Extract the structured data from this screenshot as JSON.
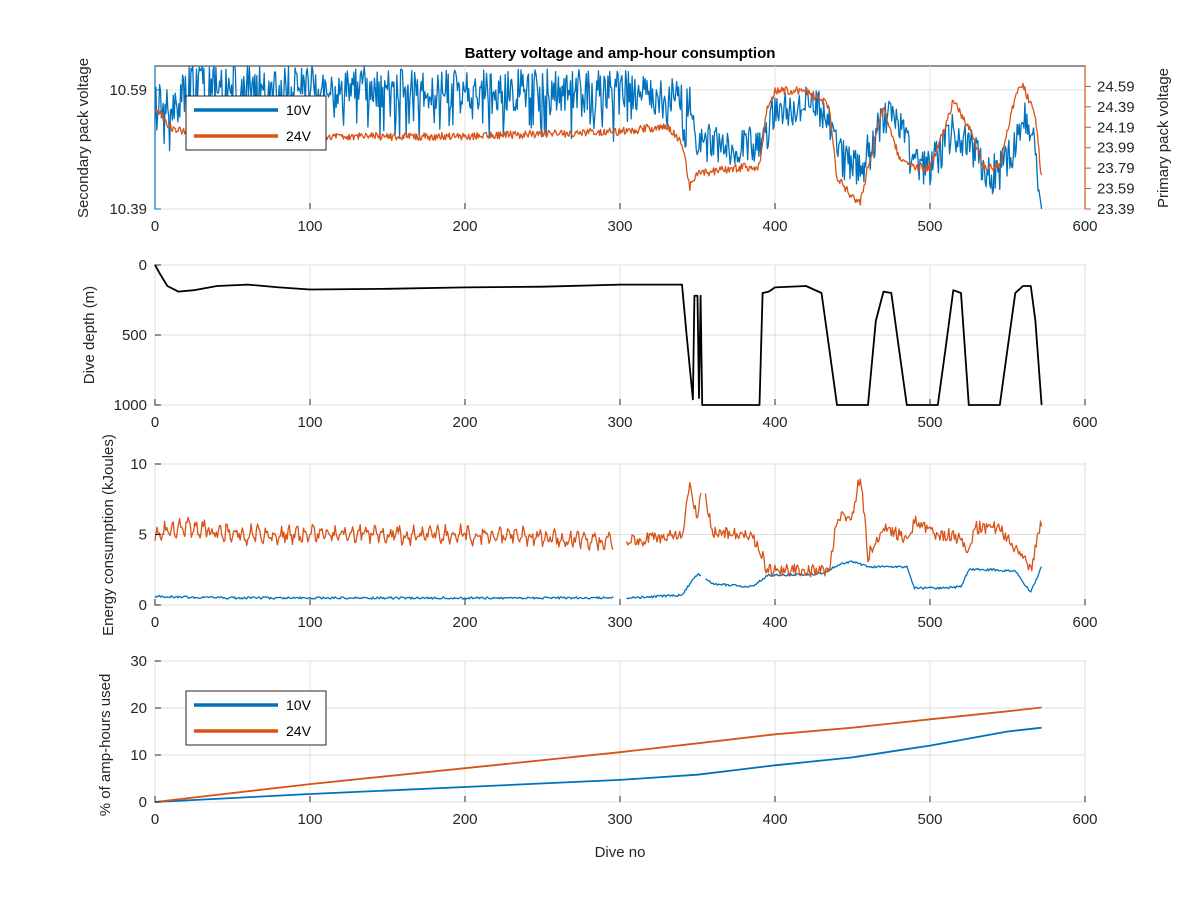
{
  "figure": {
    "title": "Battery voltage and amp-hour consumption"
  },
  "colors": {
    "series_10v": "#0072BD",
    "series_24v": "#D95319",
    "depth": "#000000",
    "axis": "#262626",
    "grid": "#dfdfdf"
  },
  "chart_data": [
    {
      "id": "voltage",
      "type": "line",
      "title": "Battery voltage and amp-hour consumption",
      "xlabel": "",
      "ylabel": "Secondary pack voltage",
      "ylabel_right": "Primary pack voltage",
      "xlim": [
        0,
        600
      ],
      "ylim": [
        10.39,
        10.63
      ],
      "ylim_right": [
        23.39,
        24.79
      ],
      "xticks": [
        "0",
        "100",
        "200",
        "300",
        "400",
        "500",
        "600"
      ],
      "yticks": [
        "10.39",
        "10.59"
      ],
      "yticks_right": [
        "23.39",
        "23.59",
        "23.79",
        "23.99",
        "24.19",
        "24.39",
        "24.59"
      ],
      "grid": true,
      "legend": {
        "entries": [
          "10V",
          "24V"
        ],
        "position": "top-left"
      },
      "series": [
        {
          "name": "10V",
          "axis": "left",
          "x": [
            0,
            10,
            25,
            50,
            100,
            150,
            200,
            250,
            300,
            330,
            345,
            348,
            355,
            380,
            395,
            400,
            420,
            435,
            440,
            455,
            462,
            470,
            480,
            490,
            500,
            515,
            525,
            535,
            545,
            555,
            560,
            568,
            572
          ],
          "y": [
            10.58,
            10.57,
            10.6,
            10.6,
            10.6,
            10.59,
            10.59,
            10.59,
            10.59,
            10.585,
            10.58,
            10.52,
            10.5,
            10.49,
            10.52,
            10.56,
            10.57,
            10.55,
            10.48,
            10.46,
            10.49,
            10.54,
            10.53,
            10.46,
            10.46,
            10.52,
            10.5,
            10.45,
            10.45,
            10.5,
            10.55,
            10.5,
            10.39
          ]
        },
        {
          "name": "24V",
          "axis": "right",
          "x": [
            0,
            10,
            30,
            100,
            200,
            300,
            330,
            340,
            345,
            350,
            355,
            380,
            390,
            395,
            400,
            420,
            435,
            440,
            450,
            455,
            460,
            470,
            480,
            490,
            500,
            510,
            515,
            525,
            535,
            545,
            555,
            560,
            568,
            572
          ],
          "y": [
            24.39,
            24.19,
            24.1,
            24.1,
            24.1,
            24.15,
            24.2,
            24.05,
            23.6,
            23.75,
            23.75,
            23.8,
            23.8,
            24.4,
            24.55,
            24.55,
            24.4,
            23.7,
            23.5,
            23.45,
            23.8,
            24.4,
            23.9,
            23.8,
            23.8,
            24.2,
            24.45,
            24.2,
            23.8,
            23.8,
            24.5,
            24.6,
            24.3,
            23.7
          ]
        }
      ]
    },
    {
      "id": "depth",
      "type": "line",
      "xlabel": "",
      "ylabel": "Dive depth (m)",
      "xlim": [
        0,
        600
      ],
      "ylim": [
        0,
        1000
      ],
      "y_reversed": true,
      "xticks": [
        "0",
        "100",
        "200",
        "300",
        "400",
        "500",
        "600"
      ],
      "yticks": [
        "0",
        "500",
        "1000"
      ],
      "grid": true,
      "series": [
        {
          "name": "",
          "x": [
            0,
            3,
            8,
            15,
            25,
            40,
            60,
            80,
            100,
            150,
            200,
            250,
            300,
            330,
            340,
            343,
            347,
            348,
            350,
            351,
            352,
            353,
            380,
            390,
            392,
            396,
            400,
            420,
            430,
            435,
            440,
            460,
            465,
            470,
            475,
            480,
            485,
            495,
            505,
            510,
            515,
            520,
            525,
            545,
            550,
            555,
            560,
            565,
            568,
            572
          ],
          "y": [
            0,
            60,
            150,
            190,
            180,
            150,
            140,
            160,
            175,
            170,
            160,
            155,
            140,
            140,
            140,
            500,
            960,
            220,
            220,
            950,
            220,
            1000,
            1000,
            1000,
            200,
            190,
            160,
            150,
            200,
            600,
            1000,
            1000,
            400,
            190,
            200,
            600,
            1000,
            1000,
            1000,
            600,
            180,
            200,
            1000,
            1000,
            600,
            200,
            150,
            150,
            400,
            1000
          ]
        }
      ]
    },
    {
      "id": "energy",
      "type": "line",
      "xlabel": "",
      "ylabel": "Energy consumption (kJoules)",
      "xlim": [
        0,
        600
      ],
      "ylim": [
        0,
        10
      ],
      "xticks": [
        "0",
        "100",
        "200",
        "300",
        "400",
        "500",
        "600"
      ],
      "yticks": [
        "0",
        "5",
        "10"
      ],
      "grid": true,
      "series": [
        {
          "name": "10V",
          "x": [
            0,
            50,
            100,
            200,
            295,
            305,
            340,
            345,
            350,
            360,
            385,
            395,
            430,
            440,
            450,
            460,
            470,
            485,
            490,
            510,
            520,
            525,
            540,
            555,
            565,
            572
          ],
          "y": [
            0.6,
            0.5,
            0.5,
            0.5,
            0.5,
            0.5,
            0.7,
            1.5,
            2.2,
            1.5,
            1.3,
            2.1,
            2.2,
            2.8,
            3.1,
            2.7,
            2.7,
            2.7,
            1.2,
            1.2,
            1.3,
            2.5,
            2.5,
            2.4,
            0.9,
            2.7
          ]
        },
        {
          "name": "24V",
          "x": [
            0,
            20,
            50,
            100,
            150,
            200,
            250,
            295,
            305,
            340,
            345,
            350,
            353,
            360,
            385,
            390,
            395,
            435,
            440,
            450,
            455,
            460,
            470,
            480,
            485,
            490,
            505,
            515,
            525,
            530,
            545,
            555,
            565,
            572
          ],
          "y": [
            5.0,
            5.5,
            5.0,
            5.0,
            5.0,
            5.0,
            4.8,
            4.5,
            4.5,
            5.0,
            8.5,
            6.0,
            8.7,
            5.2,
            5.0,
            4.0,
            2.5,
            2.4,
            6.0,
            6.5,
            9.3,
            3.5,
            5.5,
            5.0,
            4.5,
            6.0,
            5.0,
            5.0,
            4.0,
            5.5,
            5.5,
            4.0,
            2.5,
            6.0
          ]
        }
      ]
    },
    {
      "id": "amphours",
      "type": "line",
      "xlabel": "Dive no",
      "ylabel": "% of amp-hours used",
      "xlim": [
        0,
        600
      ],
      "ylim": [
        0,
        30
      ],
      "xticks": [
        "0",
        "100",
        "200",
        "300",
        "400",
        "500",
        "600"
      ],
      "yticks": [
        "0",
        "10",
        "20",
        "30"
      ],
      "grid": true,
      "legend": {
        "entries": [
          "10V",
          "24V"
        ],
        "position": "top-left"
      },
      "series": [
        {
          "name": "10V",
          "x": [
            0,
            100,
            200,
            300,
            350,
            400,
            450,
            500,
            550,
            572
          ],
          "y": [
            0,
            1.7,
            3.2,
            4.7,
            5.8,
            7.8,
            9.5,
            12.0,
            15.0,
            15.8
          ]
        },
        {
          "name": "24V",
          "x": [
            0,
            100,
            200,
            300,
            350,
            400,
            450,
            500,
            550,
            572
          ],
          "y": [
            0,
            3.8,
            7.2,
            10.6,
            12.5,
            14.4,
            15.8,
            17.6,
            19.3,
            20.1
          ]
        }
      ]
    }
  ]
}
